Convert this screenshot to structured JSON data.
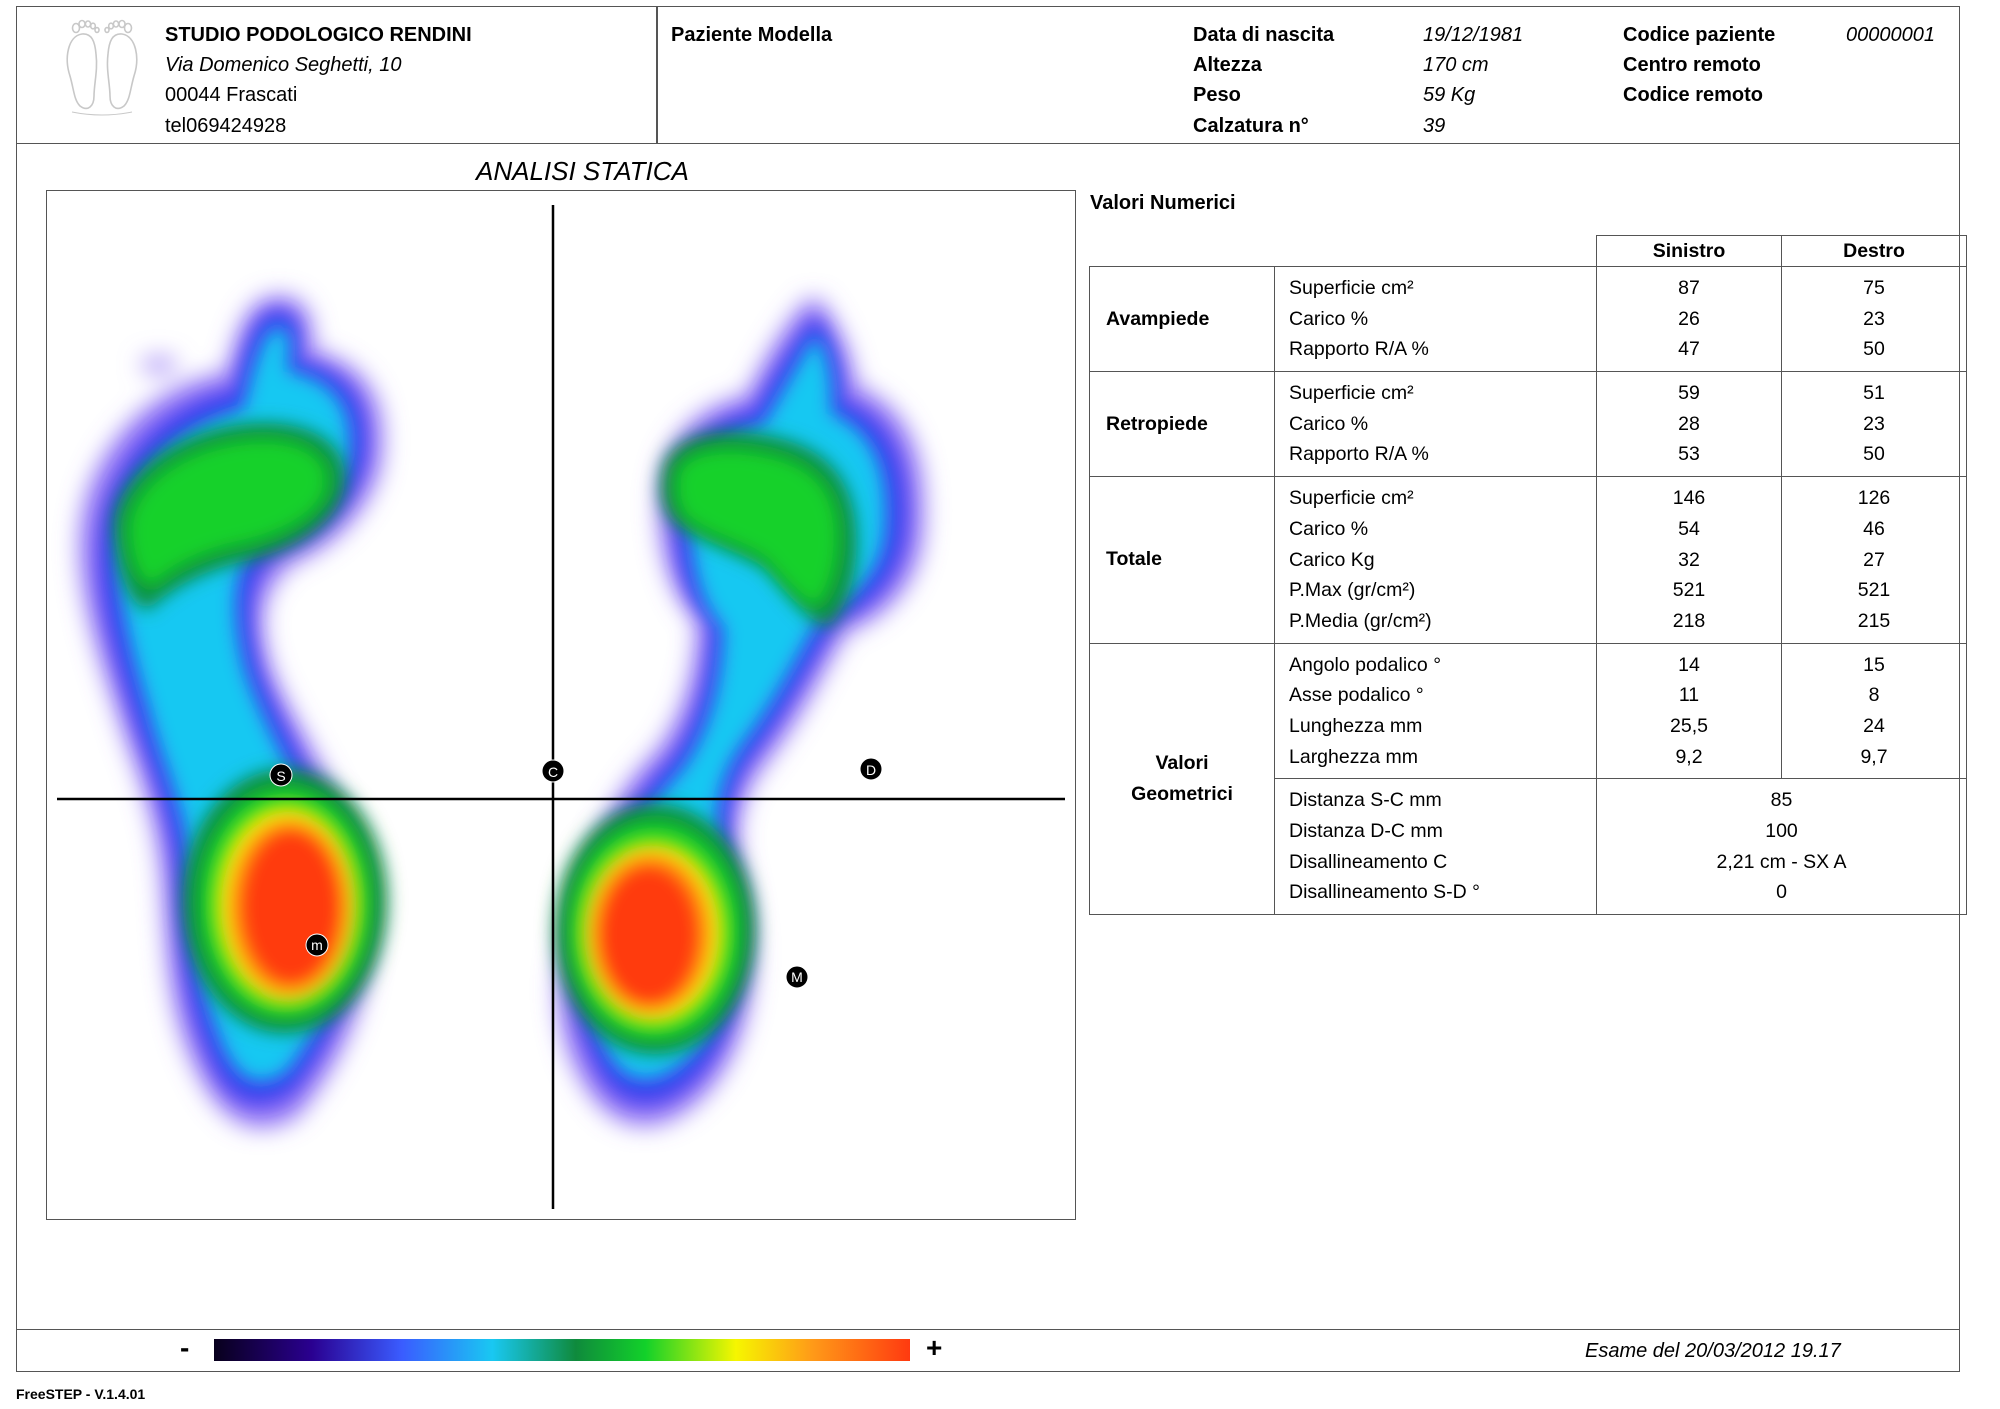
{
  "studio": {
    "name": "STUDIO PODOLOGICO RENDINI",
    "address": "Via Domenico Seghetti, 10",
    "city": "00044 Frascati",
    "phone": "tel069424928"
  },
  "patient": {
    "name": "Paziente Modella",
    "fields": [
      {
        "label": "Data di nascita",
        "value": "19/12/1981"
      },
      {
        "label": "Altezza",
        "value": "170 cm"
      },
      {
        "label": "Peso",
        "value": "59 Kg"
      },
      {
        "label": "Calzatura n°",
        "value": "39"
      }
    ],
    "codes": [
      {
        "label": "Codice paziente",
        "value": "00000001"
      },
      {
        "label": "Centro remoto",
        "value": ""
      },
      {
        "label": "Codice remoto",
        "value": ""
      }
    ]
  },
  "analysis": {
    "title": "ANALISI STATICA",
    "markers": {
      "s": "S",
      "c": "C",
      "d": "D",
      "m_left": "m",
      "m_right": "M"
    }
  },
  "values": {
    "title": "Valori Numerici",
    "columns": [
      "Sinistro",
      "Destro"
    ],
    "avampiede": {
      "label": "Avampiede",
      "rows": [
        {
          "label": "Superficie cm²",
          "left": "87",
          "right": "75"
        },
        {
          "label": "Carico %",
          "left": "26",
          "right": "23"
        },
        {
          "label": "Rapporto R/A %",
          "left": "47",
          "right": "50"
        }
      ]
    },
    "retropiede": {
      "label": "Retropiede",
      "rows": [
        {
          "label": "Superficie cm²",
          "left": "59",
          "right": "51"
        },
        {
          "label": "Carico %",
          "left": "28",
          "right": "23"
        },
        {
          "label": "Rapporto R/A %",
          "left": "53",
          "right": "50"
        }
      ]
    },
    "totale": {
      "label": "Totale",
      "rows": [
        {
          "label": "Superficie cm²",
          "left": "146",
          "right": "126"
        },
        {
          "label": "Carico %",
          "left": "54",
          "right": "46"
        },
        {
          "label": "Carico Kg",
          "left": "32",
          "right": "27"
        },
        {
          "label": "P.Max (gr/cm²)",
          "left": "521",
          "right": "521"
        },
        {
          "label": "P.Media (gr/cm²)",
          "left": "218",
          "right": "215"
        }
      ]
    },
    "geometrici": {
      "label_line1": "Valori",
      "label_line2": "Geometrici",
      "rows": [
        {
          "label": "Angolo podalico °",
          "left": "14",
          "right": "15"
        },
        {
          "label": "Asse podalico °",
          "left": "11",
          "right": "8"
        },
        {
          "label": "Lunghezza mm",
          "left": "25,5",
          "right": "24"
        },
        {
          "label": "Larghezza mm",
          "left": "9,2",
          "right": "9,7"
        }
      ],
      "shared": [
        {
          "label": "Distanza S-C mm",
          "value": "85"
        },
        {
          "label": "Distanza D-C mm",
          "value": "100"
        },
        {
          "label": "Disallineamento C",
          "value": "2,21 cm - SX A"
        },
        {
          "label": "Disallineamento S-D °",
          "value": "0"
        }
      ]
    }
  },
  "legend": {
    "minus": "-",
    "plus": "+"
  },
  "exam": "Esame del 20/03/2012 19.17",
  "version": "FreeSTEP - V.1.4.01"
}
